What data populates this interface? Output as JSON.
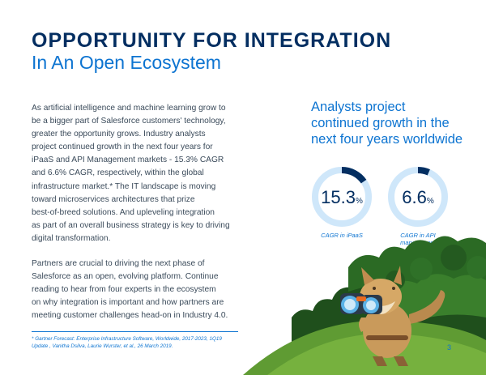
{
  "header": {
    "title": "OPPORTUNITY FOR INTEGRATION",
    "subtitle": "In An Open Ecosystem"
  },
  "body": {
    "paragraph1_lines": [
      "As artificial intelligence and machine learning grow to",
      "be a bigger part of Salesforce customers' technology,",
      "greater the opportunity grows. Industry analysts",
      "project continued growth in the next four years for",
      "iPaaS and API Management markets - 15.3% CAGR",
      "and 6.6% CAGR, respectively, within the global",
      "infrastructure market.* The IT landscape is moving",
      "toward microservices architectures that prize",
      "best-of-breed solutions. And upleveling integration",
      "as part of an overall business strategy is key to driving",
      "digital transformation."
    ],
    "paragraph2_lines": [
      "Partners are crucial to driving the next phase of",
      "Salesforce as an open, evolving platform. Continue",
      "reading to hear from four experts in the ecosystem",
      "on why integration is important and how partners are",
      "meeting customer challenges head-on in Industry 4.0."
    ]
  },
  "sidebar": {
    "headline_lines": [
      "Analysts project",
      "continued growth in the",
      "next four years worldwide"
    ],
    "stats": [
      {
        "value": "15.3",
        "unit": "%",
        "fill_fraction": 0.153,
        "label_lines": [
          "CAGR in iPaaS"
        ]
      },
      {
        "value": "6.6",
        "unit": "%",
        "fill_fraction": 0.066,
        "label_lines": [
          "CAGR in API",
          "management"
        ]
      }
    ]
  },
  "footnote": {
    "lines": [
      "* Gartner Forecast: Enterprise Infrastructure Software, Worldwide, 2017-2023, 1Q19",
      "Update , Vanitha Dsilva, Laurie Wurster, et al., 26 March 2019."
    ]
  },
  "page_number": "3",
  "colors": {
    "navy": "#032e61",
    "accent_blue": "#0d74d1",
    "ring_light": "#cfe7fa",
    "ring_dark": "#032e61"
  }
}
